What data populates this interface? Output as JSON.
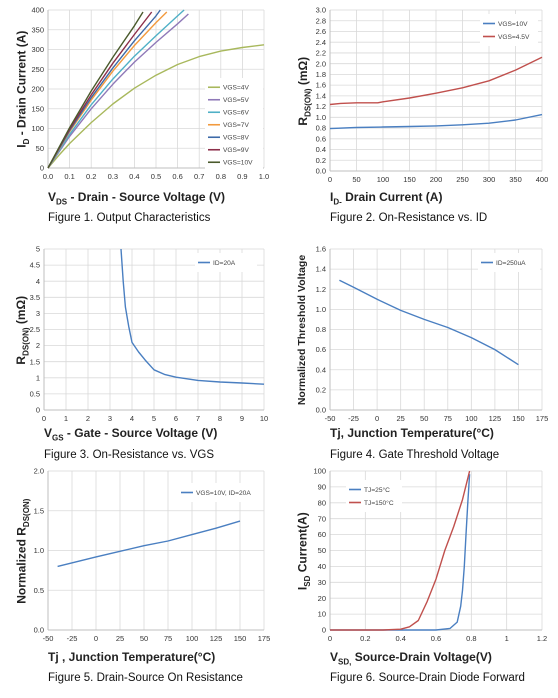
{
  "chart_data": [
    {
      "type": "line",
      "title": "",
      "caption": "Figure 1. Output Characteristics",
      "xlabel": "V_DS - Drain - Source Voltage (V)",
      "ylabel": "I_D - Drain Current (A)",
      "xlim": [
        0,
        1.0
      ],
      "ylim": [
        0,
        400
      ],
      "xticks": [
        "0.0",
        "0.1",
        "0.2",
        "0.3",
        "0.4",
        "0.5",
        "0.6",
        "0.7",
        "0.8",
        "0.9",
        "1.0"
      ],
      "yticks": [
        "0",
        "50",
        "100",
        "150",
        "200",
        "250",
        "300",
        "350",
        "400"
      ],
      "grid": true,
      "legend_position": "bottom-right",
      "series": [
        {
          "name": "VGS=4V",
          "color": "#a8b85c",
          "x": [
            0,
            0.05,
            0.1,
            0.2,
            0.3,
            0.4,
            0.5,
            0.6,
            0.7,
            0.8,
            0.9,
            1.0
          ],
          "y": [
            0,
            32,
            62,
            115,
            162,
            202,
            235,
            262,
            282,
            296,
            305,
            312
          ]
        },
        {
          "name": "VGS=5V",
          "color": "#8f79b8",
          "x": [
            0,
            0.1,
            0.2,
            0.3,
            0.4,
            0.5,
            0.6,
            0.65
          ],
          "y": [
            0,
            80,
            150,
            212,
            268,
            318,
            365,
            390
          ]
        },
        {
          "name": "VGS=6V",
          "color": "#4fb0c6",
          "x": [
            0,
            0.1,
            0.2,
            0.3,
            0.4,
            0.5,
            0.6,
            0.63
          ],
          "y": [
            0,
            85,
            160,
            225,
            283,
            335,
            385,
            400
          ]
        },
        {
          "name": "VGS=7V",
          "color": "#f29a3e",
          "x": [
            0,
            0.1,
            0.2,
            0.3,
            0.4,
            0.5,
            0.55
          ],
          "y": [
            0,
            92,
            172,
            245,
            310,
            368,
            395
          ]
        },
        {
          "name": "VGS=8V",
          "color": "#3d6aa8",
          "x": [
            0,
            0.1,
            0.2,
            0.3,
            0.4,
            0.5,
            0.52
          ],
          "y": [
            0,
            95,
            178,
            253,
            322,
            385,
            400
          ]
        },
        {
          "name": "VGS=9V",
          "color": "#8c2f4a",
          "x": [
            0,
            0.1,
            0.2,
            0.3,
            0.4,
            0.48
          ],
          "y": [
            0,
            98,
            185,
            265,
            338,
            395
          ]
        },
        {
          "name": "VGS=10V",
          "color": "#4a5a2c",
          "x": [
            0,
            0.1,
            0.2,
            0.3,
            0.4,
            0.44
          ],
          "y": [
            0,
            102,
            195,
            280,
            360,
            395
          ]
        }
      ]
    },
    {
      "type": "line",
      "title": "",
      "caption": "Figure 2. On-Resistance vs. ID",
      "xlabel": "I_D- Drain Current (A)",
      "ylabel": "R_DS(ON) (mΩ)",
      "xlim": [
        0,
        400
      ],
      "ylim": [
        0,
        3.0
      ],
      "xticks": [
        "0",
        "50",
        "100",
        "150",
        "200",
        "250",
        "300",
        "350",
        "400"
      ],
      "yticks": [
        "0.0",
        "0.2",
        "0.4",
        "0.6",
        "0.8",
        "1.0",
        "1.2",
        "1.4",
        "1.6",
        "1.8",
        "2.0",
        "2.2",
        "2.4",
        "2.6",
        "2.8",
        "3.0"
      ],
      "grid": true,
      "legend_position": "top-right",
      "series": [
        {
          "name": "VGS=10V",
          "color": "#4a7fc1",
          "x": [
            0,
            50,
            100,
            150,
            200,
            250,
            300,
            350,
            400
          ],
          "y": [
            0.79,
            0.81,
            0.82,
            0.83,
            0.84,
            0.86,
            0.89,
            0.95,
            1.05
          ]
        },
        {
          "name": "VGS=4.5V",
          "color": "#c0504d",
          "x": [
            0,
            20,
            50,
            90,
            100,
            150,
            200,
            250,
            300,
            350,
            400
          ],
          "y": [
            1.24,
            1.26,
            1.27,
            1.27,
            1.29,
            1.36,
            1.45,
            1.55,
            1.68,
            1.88,
            2.12
          ]
        }
      ]
    },
    {
      "type": "line",
      "title": "",
      "caption": "Figure 3. On-Resistance vs. VGS",
      "xlabel": "V_GS - Gate - Source Voltage (V)",
      "ylabel": "R_DS(ON) (mΩ)",
      "xlim": [
        0,
        10
      ],
      "ylim": [
        0,
        5
      ],
      "xticks": [
        "0",
        "1",
        "2",
        "3",
        "4",
        "5",
        "6",
        "7",
        "8",
        "9",
        "10"
      ],
      "yticks": [
        "0",
        "0.5",
        "1",
        "1.5",
        "2",
        "2.5",
        "3",
        "3.5",
        "4",
        "4.5",
        "5"
      ],
      "grid": true,
      "legend_position": "top-right",
      "series": [
        {
          "name": "ID=20A",
          "color": "#4a7fc1",
          "x": [
            3.5,
            3.6,
            3.7,
            3.85,
            4.0,
            4.3,
            4.6,
            5.0,
            5.5,
            6,
            7,
            8,
            9,
            10
          ],
          "y": [
            5.0,
            4.0,
            3.2,
            2.6,
            2.1,
            1.8,
            1.55,
            1.25,
            1.1,
            1.02,
            0.92,
            0.87,
            0.84,
            0.8
          ]
        }
      ]
    },
    {
      "type": "line",
      "title": "",
      "caption": "Figure 4. Gate Threshold Voltage",
      "xlabel": "Tj, Junction Temperature(°C)",
      "ylabel": "Normalized Threshold Voltage",
      "xlim": [
        -50,
        175
      ],
      "ylim": [
        0,
        1.6
      ],
      "xticks": [
        "-50",
        "-25",
        "0",
        "25",
        "50",
        "75",
        "100",
        "125",
        "150",
        "175"
      ],
      "yticks": [
        "0.0",
        "0.2",
        "0.4",
        "0.6",
        "0.8",
        "1.0",
        "1.2",
        "1.4",
        "1.6"
      ],
      "grid": true,
      "legend_position": "top-right",
      "series": [
        {
          "name": "ID=250uA",
          "color": "#4a7fc1",
          "x": [
            -40,
            -25,
            0,
            25,
            50,
            75,
            100,
            125,
            150
          ],
          "y": [
            1.29,
            1.22,
            1.1,
            0.99,
            0.9,
            0.82,
            0.72,
            0.6,
            0.45
          ]
        }
      ]
    },
    {
      "type": "line",
      "title": "",
      "caption": "Figure 5.  Drain-Source On Resistance",
      "xlabel": "Tj , Junction Temperature(°C)",
      "ylabel": "Normalized R_DS(ON)",
      "xlim": [
        -50,
        175
      ],
      "ylim": [
        0,
        2.0
      ],
      "xticks": [
        "-50",
        "-25",
        "0",
        "25",
        "50",
        "75",
        "100",
        "125",
        "150",
        "175"
      ],
      "yticks": [
        "0.0",
        "0.5",
        "1.0",
        "1.5",
        "2.0"
      ],
      "grid": true,
      "legend_position": "top-right",
      "series": [
        {
          "name": "VGS=10V, ID=20A",
          "color": "#4a7fc1",
          "x": [
            -40,
            0,
            25,
            50,
            75,
            100,
            125,
            150
          ],
          "y": [
            0.8,
            0.92,
            0.99,
            1.06,
            1.12,
            1.2,
            1.28,
            1.37
          ]
        }
      ]
    },
    {
      "type": "line",
      "title": "",
      "caption": "Figure 6. Source-Drain Diode Forward",
      "xlabel": "V_SD, Source-Drain Voltage(V)",
      "ylabel": "I_SD Current(A)",
      "xlim": [
        0,
        1.2
      ],
      "ylim": [
        0,
        100
      ],
      "xticks": [
        "0",
        "0.2",
        "0.4",
        "0.6",
        "0.8",
        "1",
        "1.2"
      ],
      "yticks": [
        "0",
        "10",
        "20",
        "30",
        "40",
        "50",
        "60",
        "70",
        "80",
        "90",
        "100"
      ],
      "grid": true,
      "legend_position": "top-left",
      "series": [
        {
          "name": "TJ=25°C",
          "color": "#4a7fc1",
          "x": [
            0,
            0.4,
            0.6,
            0.68,
            0.72,
            0.74,
            0.75,
            0.76,
            0.77,
            0.78,
            0.79
          ],
          "y": [
            0,
            0,
            0,
            1,
            5,
            15,
            25,
            40,
            60,
            80,
            98
          ]
        },
        {
          "name": "TJ=150°C",
          "color": "#c0504d",
          "x": [
            0,
            0.3,
            0.4,
            0.45,
            0.5,
            0.55,
            0.6,
            0.65,
            0.7,
            0.75,
            0.79
          ],
          "y": [
            0,
            0,
            0.5,
            2,
            6,
            18,
            32,
            50,
            65,
            82,
            100
          ]
        }
      ]
    }
  ]
}
